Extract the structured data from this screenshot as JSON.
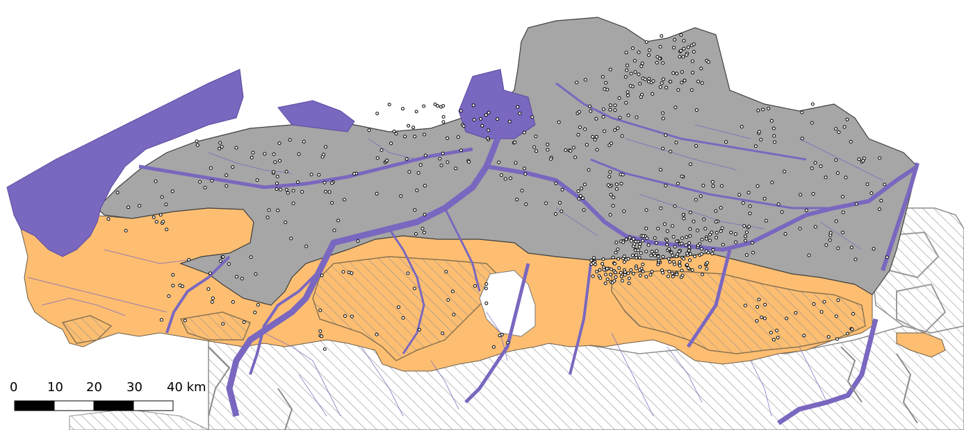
{
  "map": {
    "colors": {
      "background": "#ffffff",
      "gray_region": "#a6a6a6",
      "orange_region": "#fdbe72",
      "water": "#7a67bf",
      "hatch": "#8f8f8f",
      "boundary": "#4d4d4d",
      "points_fill": "#ffffff",
      "points_stroke": "#000000"
    },
    "layers": {
      "gray_region": "gray-region",
      "orange_region": "orange-region",
      "water": "water-bodies",
      "hatched": "hatched-areas",
      "points": "observation-points"
    }
  },
  "scale_bar": {
    "labels": [
      "0",
      "10",
      "20",
      "30",
      "40 km"
    ]
  }
}
